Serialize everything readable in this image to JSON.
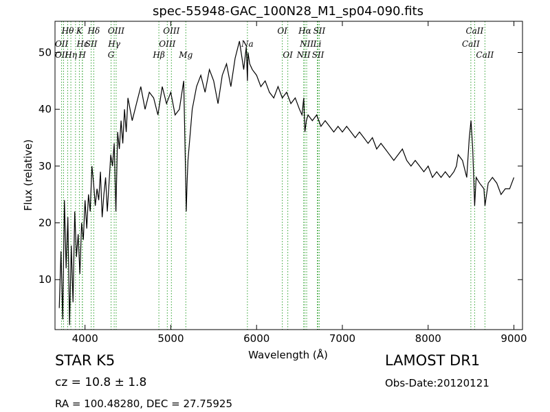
{
  "chart_data": {
    "type": "line",
    "title": "spec-55948-GAC_100N28_M1_sp04-090.fits",
    "xlabel": "Wavelength (Å)",
    "ylabel": "Flux (relative)",
    "xlim": [
      3650,
      9100
    ],
    "ylim": [
      1.2,
      55.5
    ],
    "xticks": [
      4000,
      5000,
      6000,
      7000,
      8000,
      9000
    ],
    "yticks": [
      10,
      20,
      30,
      40,
      50
    ],
    "grid": false,
    "series_color": "#000000",
    "line_marker_color": "#2ca02c",
    "series": [
      {
        "x": [
          3700,
          3720,
          3740,
          3760,
          3780,
          3800,
          3820,
          3840,
          3860,
          3880,
          3900,
          3920,
          3940,
          3960,
          3980,
          4000,
          4020,
          4040,
          4060,
          4080,
          4100,
          4120,
          4140,
          4160,
          4180,
          4200,
          4220,
          4240,
          4260,
          4280,
          4300,
          4320,
          4340,
          4360,
          4380,
          4400,
          4420,
          4440,
          4460,
          4480,
          4500,
          4550,
          4600,
          4650,
          4700,
          4750,
          4800,
          4850,
          4900,
          4950,
          5000,
          5050,
          5100,
          5150,
          5170,
          5180,
          5190,
          5200,
          5250,
          5300,
          5350,
          5400,
          5450,
          5500,
          5550,
          5600,
          5650,
          5700,
          5750,
          5800,
          5850,
          5880,
          5893,
          5900,
          5920,
          5950,
          6000,
          6050,
          6100,
          6150,
          6200,
          6250,
          6300,
          6350,
          6400,
          6450,
          6500,
          6530,
          6550,
          6563,
          6580,
          6600,
          6650,
          6700,
          6750,
          6800,
          6850,
          6900,
          6950,
          7000,
          7050,
          7100,
          7150,
          7200,
          7250,
          7300,
          7350,
          7400,
          7450,
          7500,
          7550,
          7600,
          7650,
          7700,
          7750,
          7800,
          7850,
          7900,
          7950,
          8000,
          8050,
          8100,
          8150,
          8200,
          8250,
          8300,
          8330,
          8350,
          8400,
          8450,
          8480,
          8500,
          8520,
          8542,
          8560,
          8600,
          8650,
          8662,
          8700,
          8750,
          8800,
          8850,
          8900,
          8950,
          9000
        ],
        "values": [
          5,
          15,
          3,
          24,
          12,
          21,
          2,
          16,
          6,
          22,
          14,
          18,
          11,
          20,
          17,
          24,
          19,
          25,
          22,
          30,
          27,
          23,
          26,
          24,
          29,
          21,
          25,
          28,
          22,
          27,
          32,
          30,
          34,
          22,
          36,
          33,
          38,
          34,
          40,
          36,
          42,
          38,
          41,
          44,
          40,
          43,
          42,
          39,
          44,
          41,
          43,
          39,
          40,
          45,
          30,
          22,
          27,
          31,
          40,
          44,
          46,
          43,
          47,
          45,
          41,
          46,
          48,
          44,
          49,
          52,
          47,
          51,
          45,
          50,
          48,
          47,
          46,
          44,
          45,
          43,
          42,
          44,
          42,
          43,
          41,
          42,
          40,
          39,
          42,
          36,
          38,
          39,
          38,
          39,
          37,
          38,
          37,
          36,
          37,
          36,
          37,
          36,
          35,
          36,
          35,
          34,
          35,
          33,
          34,
          33,
          32,
          31,
          32,
          33,
          31,
          30,
          31,
          30,
          29,
          30,
          28,
          29,
          28,
          29,
          28,
          29,
          30,
          32,
          31,
          28,
          35,
          38,
          33,
          23,
          28,
          27,
          26,
          23,
          27,
          28,
          27,
          25,
          26,
          26,
          28
        ],
        "markers": "none"
      }
    ],
    "line_labels": [
      {
        "text": "Hθ",
        "wave": 3798,
        "row": 1
      },
      {
        "text": "K",
        "wave": 3934,
        "row": 1
      },
      {
        "text": "Hδ",
        "wave": 4102,
        "row": 1
      },
      {
        "text": "OIII",
        "wave": 4363,
        "row": 1
      },
      {
        "text": "OIII",
        "wave": 5007,
        "row": 1
      },
      {
        "text": "OI",
        "wave": 6300,
        "row": 1
      },
      {
        "text": "Hα",
        "wave": 6563,
        "row": 1
      },
      {
        "text": "SII",
        "wave": 6731,
        "row": 1
      },
      {
        "text": "CaII",
        "wave": 8542,
        "row": 1
      },
      {
        "text": "OII",
        "wave": 3727,
        "row": 2
      },
      {
        "text": "Hε",
        "wave": 3970,
        "row": 2
      },
      {
        "text": "SII",
        "wave": 4072,
        "row": 2
      },
      {
        "text": "Hγ",
        "wave": 4340,
        "row": 2
      },
      {
        "text": "OIII",
        "wave": 4959,
        "row": 2
      },
      {
        "text": "Na",
        "wave": 5893,
        "row": 2
      },
      {
        "text": "NII",
        "wave": 6584,
        "row": 2
      },
      {
        "text": "Li",
        "wave": 6708,
        "row": 2
      },
      {
        "text": "CaII",
        "wave": 8498,
        "row": 2
      },
      {
        "text": "OII",
        "wave": 3727,
        "row": 3
      },
      {
        "text": "Hη",
        "wave": 3835,
        "row": 3
      },
      {
        "text": "H",
        "wave": 3968,
        "row": 3
      },
      {
        "text": "G",
        "wave": 4304,
        "row": 3
      },
      {
        "text": "Hβ",
        "wave": 4861,
        "row": 3
      },
      {
        "text": "Mg",
        "wave": 5175,
        "row": 3
      },
      {
        "text": "OI",
        "wave": 6364,
        "row": 3
      },
      {
        "text": "NII",
        "wave": 6548,
        "row": 3
      },
      {
        "text": "SII",
        "wave": 6716,
        "row": 3
      },
      {
        "text": "CaII",
        "wave": 8662,
        "row": 3
      }
    ],
    "line_positions": [
      3727,
      3750,
      3798,
      3835,
      3889,
      3934,
      3968,
      3970,
      4072,
      4102,
      4304,
      4340,
      4363,
      4861,
      4959,
      5007,
      5175,
      5893,
      6300,
      6364,
      6548,
      6563,
      6584,
      6708,
      6716,
      6731,
      8498,
      8542,
      8662
    ]
  },
  "info": {
    "object_class": "STAR   K5",
    "cz": "cz = 10.8 ± 1.8",
    "radec": "RA = 100.48280, DEC = 27.75925",
    "survey": "LAMOST DR1",
    "obs_date": "Obs-Date:20120121"
  }
}
